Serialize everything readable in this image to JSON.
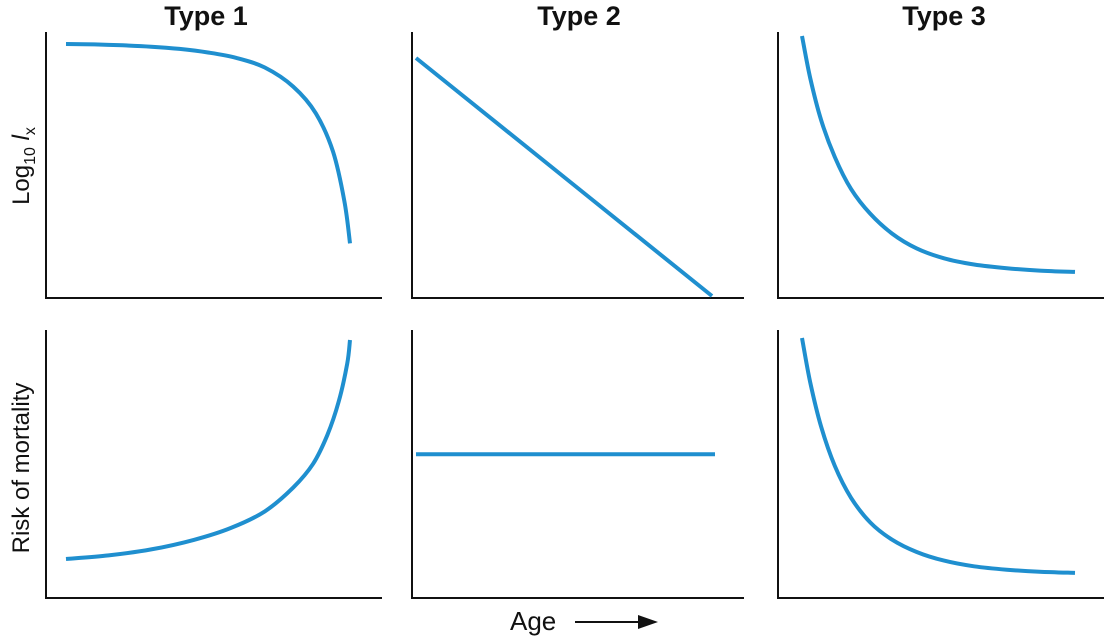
{
  "chart_data": [
    {
      "type": "line",
      "title": "Type 1",
      "ylabel": "Log10 lx",
      "ylabel_parts": {
        "base": "Log",
        "sub": "10",
        "sym": "l",
        "symsub": "x"
      },
      "series": [
        {
          "x": [
            0,
            0.1,
            0.2,
            0.3,
            0.4,
            0.5,
            0.6,
            0.7,
            0.8,
            0.88,
            0.94,
            0.98,
            1.0
          ],
          "y": [
            1.0,
            0.998,
            0.994,
            0.988,
            0.978,
            0.962,
            0.938,
            0.895,
            0.81,
            0.69,
            0.52,
            0.3,
            0.11
          ]
        }
      ],
      "line_color": "#1f8fcf"
    },
    {
      "type": "line",
      "title": "Type 2",
      "series": [
        {
          "x": [
            0,
            1
          ],
          "y": [
            1.0,
            0.0
          ]
        }
      ],
      "line_color": "#1f8fcf"
    },
    {
      "type": "line",
      "title": "Type 3",
      "series": [
        {
          "x": [
            0,
            0.03,
            0.07,
            0.12,
            0.18,
            0.25,
            0.33,
            0.42,
            0.52,
            0.63,
            0.75,
            0.87,
            1.0
          ],
          "y": [
            1.0,
            0.83,
            0.66,
            0.51,
            0.38,
            0.28,
            0.2,
            0.14,
            0.1,
            0.075,
            0.06,
            0.05,
            0.045
          ]
        }
      ],
      "line_color": "#1f8fcf"
    },
    {
      "type": "line",
      "ylabel": "Risk of mortality",
      "series": [
        {
          "x": [
            0,
            0.15,
            0.3,
            0.45,
            0.58,
            0.7,
            0.8,
            0.87,
            0.92,
            0.96,
            0.99,
            1.0
          ],
          "y": [
            0.08,
            0.095,
            0.12,
            0.16,
            0.21,
            0.28,
            0.38,
            0.48,
            0.6,
            0.74,
            0.9,
            1.0
          ]
        }
      ],
      "line_color": "#1f8fcf"
    },
    {
      "type": "line",
      "xlabel": "Age",
      "series": [
        {
          "x": [
            0,
            1
          ],
          "y": [
            0.52,
            0.52
          ]
        }
      ],
      "line_color": "#1f8fcf"
    },
    {
      "type": "line",
      "series": [
        {
          "x": [
            0,
            0.03,
            0.07,
            0.12,
            0.18,
            0.25,
            0.33,
            0.42,
            0.52,
            0.63,
            0.75,
            0.87,
            1.0
          ],
          "y": [
            1.0,
            0.82,
            0.64,
            0.48,
            0.35,
            0.25,
            0.18,
            0.13,
            0.095,
            0.072,
            0.058,
            0.05,
            0.045
          ]
        }
      ],
      "line_color": "#1f8fcf"
    }
  ],
  "labels": {
    "type1": "Type 1",
    "type2": "Type 2",
    "type3": "Type 3",
    "y_top_base": "Log",
    "y_top_sub": "10",
    "y_top_sym": "l",
    "y_top_symsub": "x",
    "y_bottom": "Risk of mortality",
    "x_bottom": "Age"
  },
  "colors": {
    "axis": "#111111",
    "curve": "#1f8fcf"
  }
}
